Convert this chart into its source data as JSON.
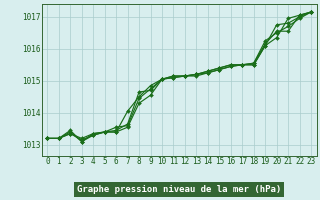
{
  "xlabel": "Graphe pression niveau de la mer (hPa)",
  "x": [
    0,
    1,
    2,
    3,
    4,
    5,
    6,
    7,
    8,
    9,
    10,
    11,
    12,
    13,
    14,
    15,
    16,
    17,
    18,
    19,
    20,
    21,
    22,
    23
  ],
  "series": [
    [
      1013.2,
      1013.2,
      1013.4,
      1013.1,
      1013.35,
      1013.4,
      1013.4,
      1013.55,
      1014.3,
      1014.55,
      1015.05,
      1015.15,
      1015.15,
      1015.15,
      1015.25,
      1015.35,
      1015.45,
      1015.5,
      1015.55,
      1016.15,
      1016.55,
      1016.55,
      1017.05,
      1017.15
    ],
    [
      1013.2,
      1013.2,
      1013.45,
      1013.1,
      1013.3,
      1013.4,
      1013.55,
      1013.6,
      1014.45,
      1014.75,
      1015.05,
      1015.15,
      1015.15,
      1015.2,
      1015.25,
      1015.35,
      1015.45,
      1015.5,
      1015.55,
      1016.25,
      1016.5,
      1016.7,
      1016.95,
      1017.15
    ],
    [
      1013.2,
      1013.2,
      1013.35,
      1013.15,
      1013.3,
      1013.4,
      1013.4,
      1014.05,
      1014.5,
      1014.85,
      1015.05,
      1015.1,
      1015.15,
      1015.2,
      1015.3,
      1015.4,
      1015.5,
      1015.5,
      1015.5,
      1016.1,
      1016.35,
      1016.95,
      1017.05,
      1017.15
    ],
    [
      1013.2,
      1013.2,
      1013.35,
      1013.2,
      1013.35,
      1013.4,
      1013.45,
      1013.65,
      1014.65,
      1014.7,
      1015.05,
      1015.1,
      1015.15,
      1015.2,
      1015.3,
      1015.4,
      1015.5,
      1015.5,
      1015.5,
      1016.1,
      1016.75,
      1016.8,
      1017.0,
      1017.15
    ]
  ],
  "line_color": "#1a6e1a",
  "marker_color": "#1a6e1a",
  "bg_color": "#d8eeee",
  "grid_color": "#aacccc",
  "axis_color": "#336633",
  "text_color": "#1a5c1a",
  "label_bg": "#336633",
  "label_fg": "#ffffff",
  "ylim": [
    1012.65,
    1017.4
  ],
  "yticks": [
    1013,
    1014,
    1015,
    1016,
    1017
  ],
  "xticks": [
    0,
    1,
    2,
    3,
    4,
    5,
    6,
    7,
    8,
    9,
    10,
    11,
    12,
    13,
    14,
    15,
    16,
    17,
    18,
    19,
    20,
    21,
    22,
    23
  ],
  "xlabel_fontsize": 6.5,
  "tick_fontsize": 5.5,
  "marker_size": 2.0,
  "line_width": 0.85
}
